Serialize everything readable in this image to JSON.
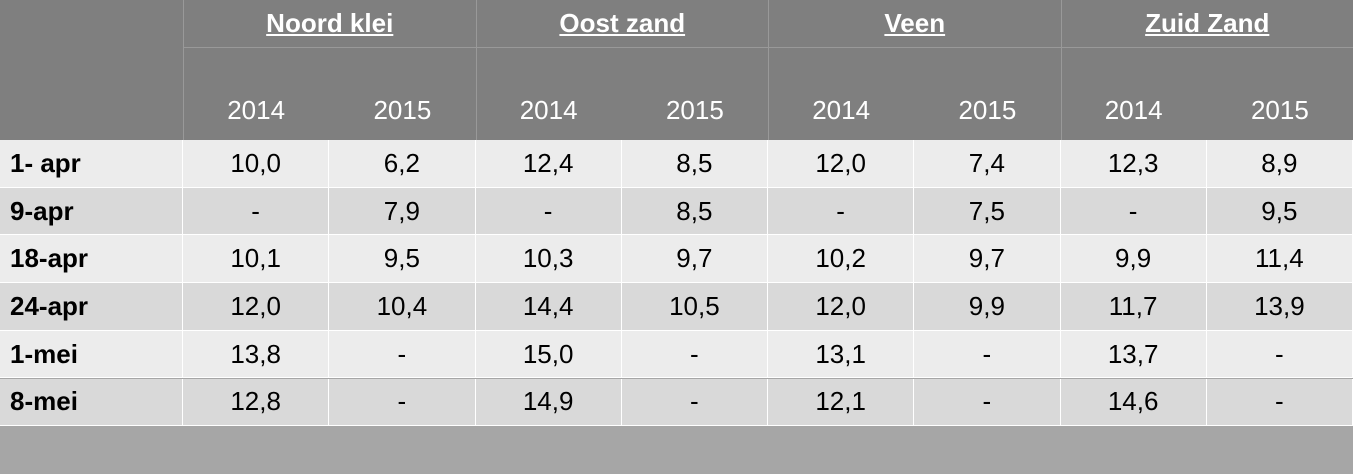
{
  "table": {
    "groups": [
      {
        "name": "Noord klei",
        "years": [
          "2014",
          "2015"
        ]
      },
      {
        "name": "Oost zand",
        "years": [
          "2014",
          "2015"
        ]
      },
      {
        "name": "Veen",
        "years": [
          "2014",
          "2015"
        ]
      },
      {
        "name": "Zuid Zand",
        "years": [
          "2014",
          "2015"
        ]
      }
    ],
    "rows": [
      {
        "label": "1- apr",
        "cells": [
          "10,0",
          "6,2",
          "12,4",
          "8,5",
          "12,0",
          "7,4",
          "12,3",
          "8,9"
        ]
      },
      {
        "label": "9-apr",
        "cells": [
          "-",
          "7,9",
          "-",
          "8,5",
          "-",
          "7,5",
          "-",
          "9,5"
        ]
      },
      {
        "label": "18-apr",
        "cells": [
          "10,1",
          "9,5",
          "10,3",
          "9,7",
          "10,2",
          "9,7",
          "9,9",
          "11,4"
        ]
      },
      {
        "label": "24-apr",
        "cells": [
          "12,0",
          "10,4",
          "14,4",
          "10,5",
          "12,0",
          "9,9",
          "11,7",
          "13,9"
        ]
      },
      {
        "label": "1-mei",
        "cells": [
          "13,8",
          "-",
          "15,0",
          "-",
          "13,1",
          "-",
          "13,7",
          "-"
        ]
      },
      {
        "label": "8-mei",
        "cells": [
          "12,8",
          "-",
          "14,9",
          "-",
          "12,1",
          "-",
          "14,6",
          "-"
        ]
      }
    ]
  }
}
